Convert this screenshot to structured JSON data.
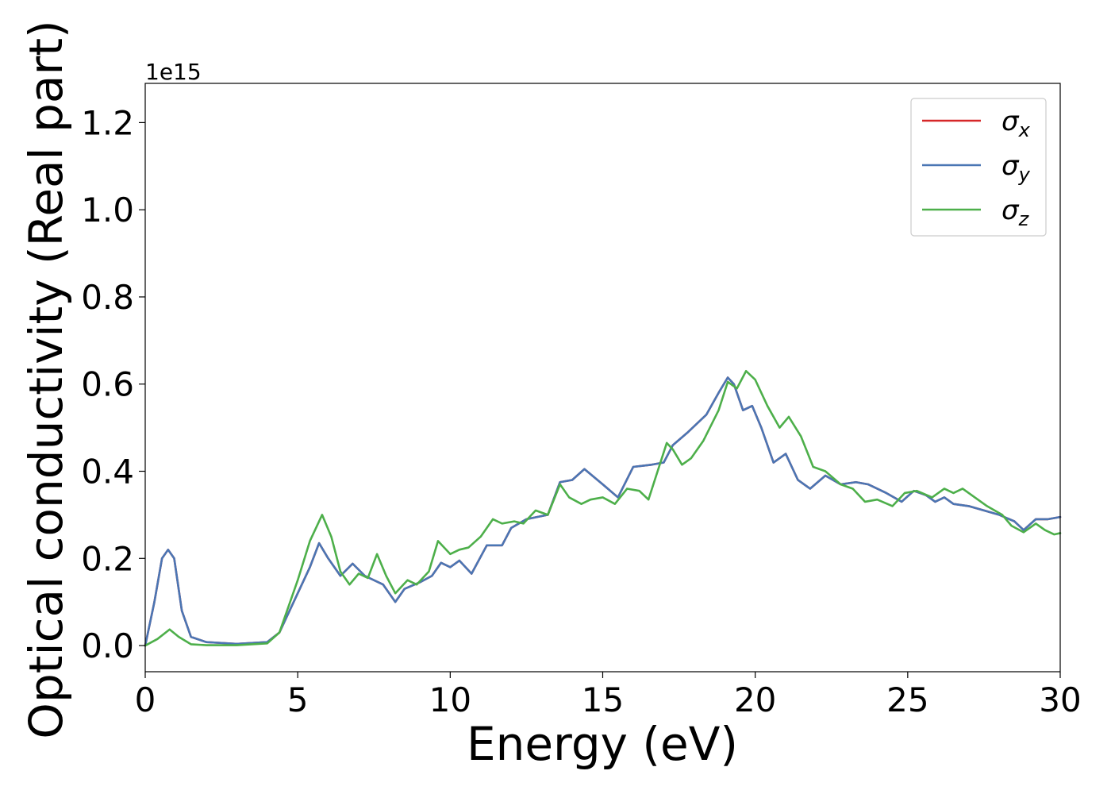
{
  "chart_data": {
    "type": "line",
    "xlabel": "Energy (eV)",
    "ylabel": "Optical conductivity (Real part)",
    "y_offset_label": "1e15",
    "xlim": [
      0,
      30
    ],
    "ylim": [
      -0.06,
      1.29
    ],
    "x_ticks": [
      0,
      5,
      10,
      15,
      20,
      25,
      30
    ],
    "y_ticks": [
      0.0,
      0.2,
      0.4,
      0.6,
      0.8,
      1.0,
      1.2
    ],
    "x_tick_labels": [
      "0",
      "5",
      "10",
      "15",
      "20",
      "25",
      "30"
    ],
    "y_tick_labels": [
      "0.0",
      "0.2",
      "0.4",
      "0.6",
      "0.8",
      "1.0",
      "1.2"
    ],
    "grid": false,
    "legend_position": "top-right",
    "series": [
      {
        "name": "σx",
        "legend_base": "σ",
        "legend_sub": "x",
        "color": "#d62728",
        "points": [
          [
            0,
            0.0
          ],
          [
            0.3,
            0.1
          ],
          [
            0.55,
            0.2
          ],
          [
            0.75,
            0.22
          ],
          [
            0.95,
            0.2
          ],
          [
            1.2,
            0.08
          ],
          [
            1.5,
            0.02
          ],
          [
            2,
            0.008
          ],
          [
            3,
            0.004
          ],
          [
            4,
            0.008
          ],
          [
            4.4,
            0.03
          ],
          [
            5,
            0.12
          ],
          [
            5.4,
            0.18
          ],
          [
            5.7,
            0.235
          ],
          [
            6,
            0.2
          ],
          [
            6.4,
            0.16
          ],
          [
            6.8,
            0.188
          ],
          [
            7.2,
            0.16
          ],
          [
            7.8,
            0.14
          ],
          [
            8.2,
            0.1
          ],
          [
            8.5,
            0.13
          ],
          [
            9,
            0.145
          ],
          [
            9.4,
            0.16
          ],
          [
            9.7,
            0.19
          ],
          [
            10,
            0.18
          ],
          [
            10.3,
            0.195
          ],
          [
            10.7,
            0.165
          ],
          [
            11.2,
            0.23
          ],
          [
            11.7,
            0.23
          ],
          [
            12,
            0.27
          ],
          [
            12.5,
            0.29
          ],
          [
            13.2,
            0.3
          ],
          [
            13.6,
            0.375
          ],
          [
            14,
            0.38
          ],
          [
            14.4,
            0.405
          ],
          [
            15,
            0.37
          ],
          [
            15.5,
            0.34
          ],
          [
            16,
            0.41
          ],
          [
            16.6,
            0.415
          ],
          [
            17,
            0.42
          ],
          [
            17.3,
            0.46
          ],
          [
            17.8,
            0.49
          ],
          [
            18.4,
            0.53
          ],
          [
            18.8,
            0.58
          ],
          [
            19.1,
            0.615
          ],
          [
            19.3,
            0.6
          ],
          [
            19.6,
            0.54
          ],
          [
            19.9,
            0.55
          ],
          [
            20.2,
            0.5
          ],
          [
            20.6,
            0.42
          ],
          [
            21,
            0.44
          ],
          [
            21.4,
            0.38
          ],
          [
            21.8,
            0.36
          ],
          [
            22.3,
            0.39
          ],
          [
            22.8,
            0.37
          ],
          [
            23.3,
            0.375
          ],
          [
            23.7,
            0.37
          ],
          [
            24.3,
            0.35
          ],
          [
            24.8,
            0.33
          ],
          [
            25.2,
            0.355
          ],
          [
            25.6,
            0.345
          ],
          [
            25.9,
            0.33
          ],
          [
            26.2,
            0.34
          ],
          [
            26.5,
            0.325
          ],
          [
            27,
            0.32
          ],
          [
            27.5,
            0.31
          ],
          [
            28,
            0.3
          ],
          [
            28.5,
            0.285
          ],
          [
            28.8,
            0.265
          ],
          [
            29.2,
            0.29
          ],
          [
            29.6,
            0.29
          ],
          [
            30,
            0.295
          ]
        ]
      },
      {
        "name": "σy",
        "legend_base": "σ",
        "legend_sub": "y",
        "color": "#4a76b4",
        "points": [
          [
            0,
            0.0
          ],
          [
            0.3,
            0.1
          ],
          [
            0.55,
            0.2
          ],
          [
            0.75,
            0.22
          ],
          [
            0.95,
            0.2
          ],
          [
            1.2,
            0.08
          ],
          [
            1.5,
            0.02
          ],
          [
            2,
            0.008
          ],
          [
            3,
            0.004
          ],
          [
            4,
            0.008
          ],
          [
            4.4,
            0.03
          ],
          [
            5,
            0.12
          ],
          [
            5.4,
            0.18
          ],
          [
            5.7,
            0.235
          ],
          [
            6,
            0.2
          ],
          [
            6.4,
            0.16
          ],
          [
            6.8,
            0.188
          ],
          [
            7.2,
            0.16
          ],
          [
            7.8,
            0.14
          ],
          [
            8.2,
            0.1
          ],
          [
            8.5,
            0.13
          ],
          [
            9,
            0.145
          ],
          [
            9.4,
            0.16
          ],
          [
            9.7,
            0.19
          ],
          [
            10,
            0.18
          ],
          [
            10.3,
            0.195
          ],
          [
            10.7,
            0.165
          ],
          [
            11.2,
            0.23
          ],
          [
            11.7,
            0.23
          ],
          [
            12,
            0.27
          ],
          [
            12.5,
            0.29
          ],
          [
            13.2,
            0.3
          ],
          [
            13.6,
            0.375
          ],
          [
            14,
            0.38
          ],
          [
            14.4,
            0.405
          ],
          [
            15,
            0.37
          ],
          [
            15.5,
            0.34
          ],
          [
            16,
            0.41
          ],
          [
            16.6,
            0.415
          ],
          [
            17,
            0.42
          ],
          [
            17.3,
            0.46
          ],
          [
            17.8,
            0.49
          ],
          [
            18.4,
            0.53
          ],
          [
            18.8,
            0.58
          ],
          [
            19.1,
            0.615
          ],
          [
            19.3,
            0.6
          ],
          [
            19.6,
            0.54
          ],
          [
            19.9,
            0.55
          ],
          [
            20.2,
            0.5
          ],
          [
            20.6,
            0.42
          ],
          [
            21,
            0.44
          ],
          [
            21.4,
            0.38
          ],
          [
            21.8,
            0.36
          ],
          [
            22.3,
            0.39
          ],
          [
            22.8,
            0.37
          ],
          [
            23.3,
            0.375
          ],
          [
            23.7,
            0.37
          ],
          [
            24.3,
            0.35
          ],
          [
            24.8,
            0.33
          ],
          [
            25.2,
            0.355
          ],
          [
            25.6,
            0.345
          ],
          [
            25.9,
            0.33
          ],
          [
            26.2,
            0.34
          ],
          [
            26.5,
            0.325
          ],
          [
            27,
            0.32
          ],
          [
            27.5,
            0.31
          ],
          [
            28,
            0.3
          ],
          [
            28.5,
            0.285
          ],
          [
            28.8,
            0.265
          ],
          [
            29.2,
            0.29
          ],
          [
            29.6,
            0.29
          ],
          [
            30,
            0.295
          ]
        ]
      },
      {
        "name": "σz",
        "legend_base": "σ",
        "legend_sub": "z",
        "color": "#4daf4a",
        "points": [
          [
            0,
            0.0
          ],
          [
            0.4,
            0.015
          ],
          [
            0.8,
            0.037
          ],
          [
            1.1,
            0.02
          ],
          [
            1.5,
            0.003
          ],
          [
            2,
            0.001
          ],
          [
            3,
            0.001
          ],
          [
            4,
            0.005
          ],
          [
            4.4,
            0.03
          ],
          [
            5,
            0.15
          ],
          [
            5.4,
            0.24
          ],
          [
            5.8,
            0.3
          ],
          [
            6.1,
            0.25
          ],
          [
            6.4,
            0.17
          ],
          [
            6.7,
            0.14
          ],
          [
            7,
            0.165
          ],
          [
            7.3,
            0.155
          ],
          [
            7.6,
            0.21
          ],
          [
            7.9,
            0.16
          ],
          [
            8.2,
            0.12
          ],
          [
            8.6,
            0.15
          ],
          [
            8.9,
            0.14
          ],
          [
            9.3,
            0.17
          ],
          [
            9.6,
            0.24
          ],
          [
            10,
            0.21
          ],
          [
            10.3,
            0.22
          ],
          [
            10.6,
            0.225
          ],
          [
            11,
            0.25
          ],
          [
            11.4,
            0.29
          ],
          [
            11.7,
            0.28
          ],
          [
            12.1,
            0.285
          ],
          [
            12.4,
            0.28
          ],
          [
            12.8,
            0.31
          ],
          [
            13.2,
            0.3
          ],
          [
            13.6,
            0.37
          ],
          [
            13.9,
            0.34
          ],
          [
            14.3,
            0.325
          ],
          [
            14.6,
            0.335
          ],
          [
            15,
            0.34
          ],
          [
            15.4,
            0.325
          ],
          [
            15.8,
            0.36
          ],
          [
            16.2,
            0.355
          ],
          [
            16.5,
            0.335
          ],
          [
            16.8,
            0.4
          ],
          [
            17.1,
            0.465
          ],
          [
            17.3,
            0.45
          ],
          [
            17.6,
            0.415
          ],
          [
            17.9,
            0.43
          ],
          [
            18.3,
            0.47
          ],
          [
            18.8,
            0.54
          ],
          [
            19.1,
            0.605
          ],
          [
            19.4,
            0.59
          ],
          [
            19.7,
            0.63
          ],
          [
            20,
            0.61
          ],
          [
            20.4,
            0.55
          ],
          [
            20.8,
            0.5
          ],
          [
            21.1,
            0.525
          ],
          [
            21.5,
            0.48
          ],
          [
            21.9,
            0.41
          ],
          [
            22.3,
            0.4
          ],
          [
            22.8,
            0.37
          ],
          [
            23.2,
            0.36
          ],
          [
            23.6,
            0.33
          ],
          [
            24,
            0.335
          ],
          [
            24.5,
            0.32
          ],
          [
            24.9,
            0.35
          ],
          [
            25.3,
            0.355
          ],
          [
            25.8,
            0.34
          ],
          [
            26.2,
            0.36
          ],
          [
            26.5,
            0.35
          ],
          [
            26.8,
            0.36
          ],
          [
            27.2,
            0.34
          ],
          [
            27.6,
            0.32
          ],
          [
            28.1,
            0.3
          ],
          [
            28.4,
            0.275
          ],
          [
            28.8,
            0.26
          ],
          [
            29.2,
            0.28
          ],
          [
            29.5,
            0.265
          ],
          [
            29.8,
            0.255
          ],
          [
            30,
            0.258
          ]
        ]
      }
    ]
  }
}
